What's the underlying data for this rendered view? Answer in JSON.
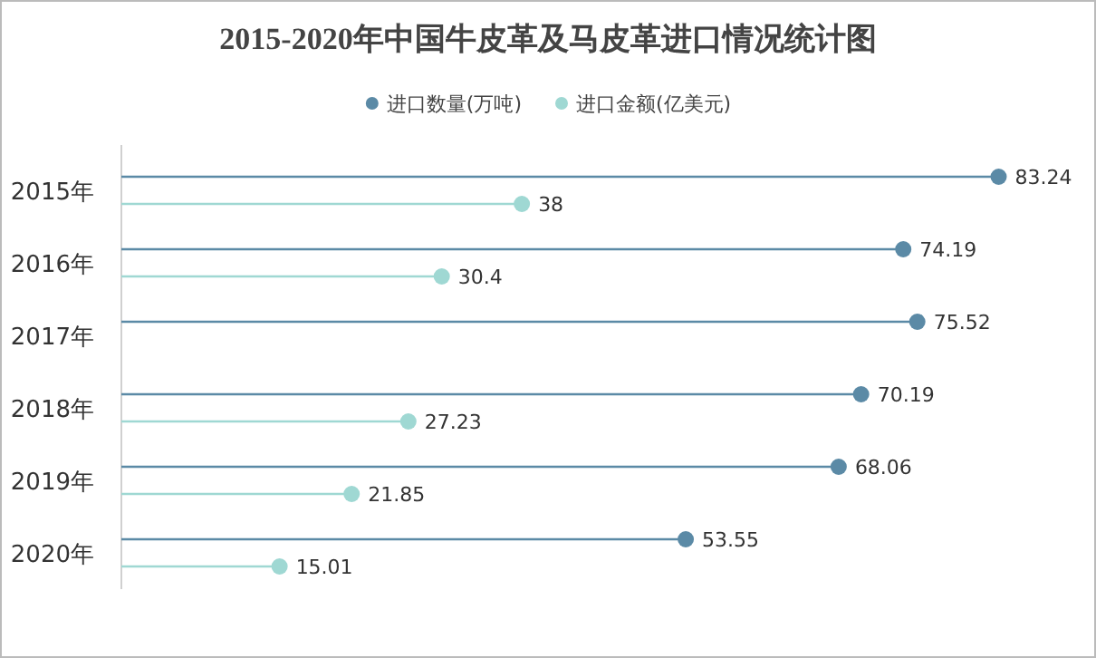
{
  "chart_data": {
    "type": "lollipop",
    "orientation": "horizontal",
    "title": "2015-2020年中国牛皮革及马皮革进口情况统计图",
    "categories": [
      "2015年",
      "2016年",
      "2017年",
      "2018年",
      "2019年",
      "2020年"
    ],
    "series": [
      {
        "name": "进口数量(万吨)",
        "color": "#5b8aa6",
        "values": [
          83.24,
          74.19,
          75.52,
          70.19,
          68.06,
          53.55
        ]
      },
      {
        "name": "进口金额(亿美元)",
        "color": "#9fd8d3",
        "values": [
          38,
          30.4,
          null,
          27.23,
          21.85,
          15.01
        ]
      }
    ],
    "data_labels": true,
    "legend": "top",
    "marker": "circle"
  }
}
